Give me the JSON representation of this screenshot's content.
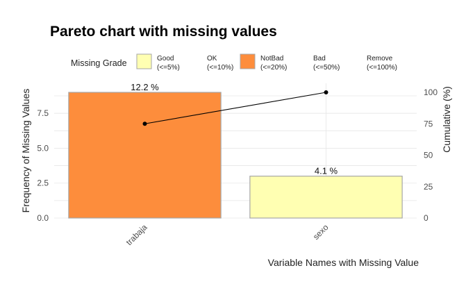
{
  "chart_data": {
    "type": "bar",
    "title": "Pareto chart with missing values",
    "xlabel": "Variable Names with Missing Value",
    "ylabel": "Frequency of Missing Values",
    "y2label": "Cumulative (%)",
    "categories": [
      "trabaja",
      "sexo"
    ],
    "values": [
      9,
      3
    ],
    "bar_labels": [
      "12.2 %",
      "4.1 %"
    ],
    "bar_colors": [
      "#FD8D3C",
      "#FFFFB2"
    ],
    "cumulative": [
      75,
      100
    ],
    "ylim": [
      0,
      9
    ],
    "yticks": [
      "0.0",
      "2.5",
      "5.0",
      "7.5"
    ],
    "y2lim": [
      0,
      100
    ],
    "y2ticks": [
      "0",
      "25",
      "50",
      "75",
      "100"
    ],
    "grid": true,
    "legend_position": "top",
    "legend": {
      "title": "Missing Grade",
      "items": [
        {
          "label": "Good",
          "range": "(<=5%)",
          "color": "#FFFFB2",
          "shown": true
        },
        {
          "label": "OK",
          "range": "(<=10%)",
          "color": "#FECC5C",
          "shown": false
        },
        {
          "label": "NotBad",
          "range": "(<=20%)",
          "color": "#FD8D3C",
          "shown": true
        },
        {
          "label": "Bad",
          "range": "(<=50%)",
          "color": "#F03B20",
          "shown": false
        },
        {
          "label": "Remove",
          "range": "(<=100%)",
          "color": "#BD0026",
          "shown": false
        }
      ]
    }
  }
}
